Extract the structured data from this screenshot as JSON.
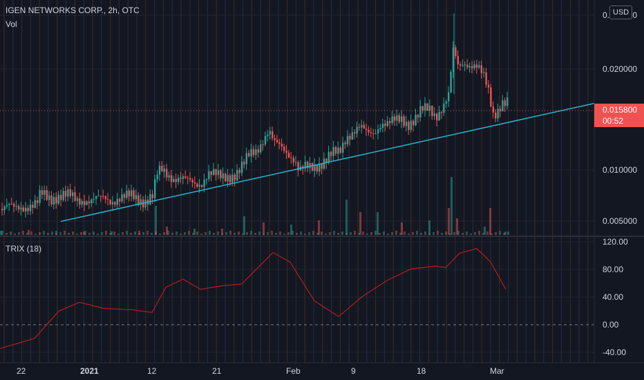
{
  "header": {
    "symbol_line": "IGEN NETWORKS CORP., 2h, OTC",
    "volume_label": "Vol",
    "indicator_label": "TRIX (18)"
  },
  "currency_badge": "USD",
  "price_tag": {
    "price": "0.015800",
    "countdown": "00:52"
  },
  "colors": {
    "background": "#131722",
    "up": "#26a69a",
    "down": "#ef5350",
    "trendline": "#29b6d0",
    "trix": "#b71c1c"
  },
  "chart_data": [
    {
      "type": "candlestick",
      "title": "IGEN NETWORKS CORP., 2h, OTC",
      "x_tick_labels": [
        "22",
        "2021",
        "12",
        "21",
        "Feb",
        "9",
        "18",
        "Mar"
      ],
      "y_tick_labels": [
        "0.025000",
        "0.020000",
        "0.010000",
        "0.005000"
      ],
      "ylim": [
        0.0035,
        0.0255
      ],
      "last_price": 0.0158,
      "trendline": [
        {
          "x": "Dec 28",
          "y": 0.0046
        },
        {
          "x": "Mar 5",
          "y": 0.0159
        }
      ],
      "price_path": [
        [
          0,
          0.0058
        ],
        [
          10,
          0.006
        ],
        [
          20,
          0.0058
        ],
        [
          30,
          0.006
        ],
        [
          40,
          0.0061
        ],
        [
          52,
          0.0062
        ],
        [
          58,
          0.0072
        ],
        [
          65,
          0.007
        ],
        [
          72,
          0.0068
        ],
        [
          80,
          0.007
        ],
        [
          90,
          0.0071
        ],
        [
          100,
          0.007
        ],
        [
          110,
          0.0066
        ],
        [
          120,
          0.0067
        ],
        [
          130,
          0.0066
        ],
        [
          140,
          0.0067
        ],
        [
          150,
          0.0068
        ],
        [
          160,
          0.0066
        ],
        [
          170,
          0.0068
        ],
        [
          180,
          0.0069
        ],
        [
          190,
          0.007
        ],
        [
          200,
          0.0067
        ],
        [
          210,
          0.0066
        ],
        [
          220,
          0.007
        ],
        [
          226,
          0.009
        ],
        [
          232,
          0.0095
        ],
        [
          240,
          0.0092
        ],
        [
          250,
          0.0088
        ],
        [
          260,
          0.0087
        ],
        [
          270,
          0.0084
        ],
        [
          280,
          0.0082
        ],
        [
          290,
          0.0083
        ],
        [
          300,
          0.0092
        ],
        [
          310,
          0.009
        ],
        [
          320,
          0.0088
        ],
        [
          330,
          0.009
        ],
        [
          340,
          0.0091
        ],
        [
          350,
          0.0098
        ],
        [
          360,
          0.011
        ],
        [
          370,
          0.0115
        ],
        [
          380,
          0.0125
        ],
        [
          388,
          0.0132
        ],
        [
          395,
          0.012
        ],
        [
          405,
          0.0118
        ],
        [
          415,
          0.0113
        ],
        [
          425,
          0.0105
        ],
        [
          432,
          0.0093
        ],
        [
          440,
          0.0097
        ],
        [
          450,
          0.0098
        ],
        [
          460,
          0.0101
        ],
        [
          470,
          0.0105
        ],
        [
          480,
          0.011
        ],
        [
          490,
          0.0112
        ],
        [
          500,
          0.0128
        ],
        [
          510,
          0.0132
        ],
        [
          520,
          0.0135
        ],
        [
          530,
          0.013
        ],
        [
          540,
          0.0132
        ],
        [
          550,
          0.014
        ],
        [
          560,
          0.0138
        ],
        [
          570,
          0.0142
        ],
        [
          580,
          0.0145
        ],
        [
          590,
          0.014
        ],
        [
          600,
          0.0143
        ],
        [
          610,
          0.0152
        ],
        [
          620,
          0.0155
        ],
        [
          630,
          0.0148
        ],
        [
          640,
          0.0155
        ],
        [
          648,
          0.0165
        ],
        [
          655,
          0.021
        ],
        [
          662,
          0.0195
        ],
        [
          670,
          0.02
        ],
        [
          680,
          0.0195
        ],
        [
          690,
          0.0192
        ],
        [
          700,
          0.0183
        ],
        [
          707,
          0.017
        ],
        [
          712,
          0.015
        ],
        [
          718,
          0.0152
        ],
        [
          725,
          0.0158
        ],
        [
          733,
          0.0158
        ]
      ],
      "volume_bars": [
        [
          0,
          1
        ],
        [
          40,
          1.2
        ],
        [
          80,
          1
        ],
        [
          120,
          0.8
        ],
        [
          160,
          0.9
        ],
        [
          200,
          1
        ],
        [
          224,
          7
        ],
        [
          240,
          2
        ],
        [
          280,
          1.5
        ],
        [
          320,
          1.5
        ],
        [
          352,
          4.5
        ],
        [
          380,
          3
        ],
        [
          420,
          2.5
        ],
        [
          460,
          3.5
        ],
        [
          500,
          8.5
        ],
        [
          520,
          5.5
        ],
        [
          545,
          5.5
        ],
        [
          580,
          3
        ],
        [
          620,
          3.5
        ],
        [
          648,
          6.5
        ],
        [
          652,
          14
        ],
        [
          660,
          4
        ],
        [
          700,
          2
        ],
        [
          708,
          6.5
        ],
        [
          730,
          0.8
        ]
      ]
    },
    {
      "type": "line",
      "title": "TRIX (18)",
      "y_tick_labels": [
        "120.00",
        "80.00",
        "40.00",
        "0.00",
        "-40.00"
      ],
      "ylim": [
        -48,
        124
      ],
      "x": [
        0,
        50,
        85,
        115,
        150,
        190,
        220,
        240,
        265,
        290,
        320,
        350,
        395,
        420,
        455,
        490,
        525,
        560,
        595,
        630,
        645,
        665,
        690,
        710,
        732
      ],
      "values": [
        -35,
        -20,
        20,
        33,
        24,
        22,
        18,
        55,
        67,
        52,
        57,
        60,
        106,
        92,
        35,
        12,
        42,
        65,
        82,
        86,
        84,
        105,
        112,
        92,
        52
      ]
    }
  ]
}
